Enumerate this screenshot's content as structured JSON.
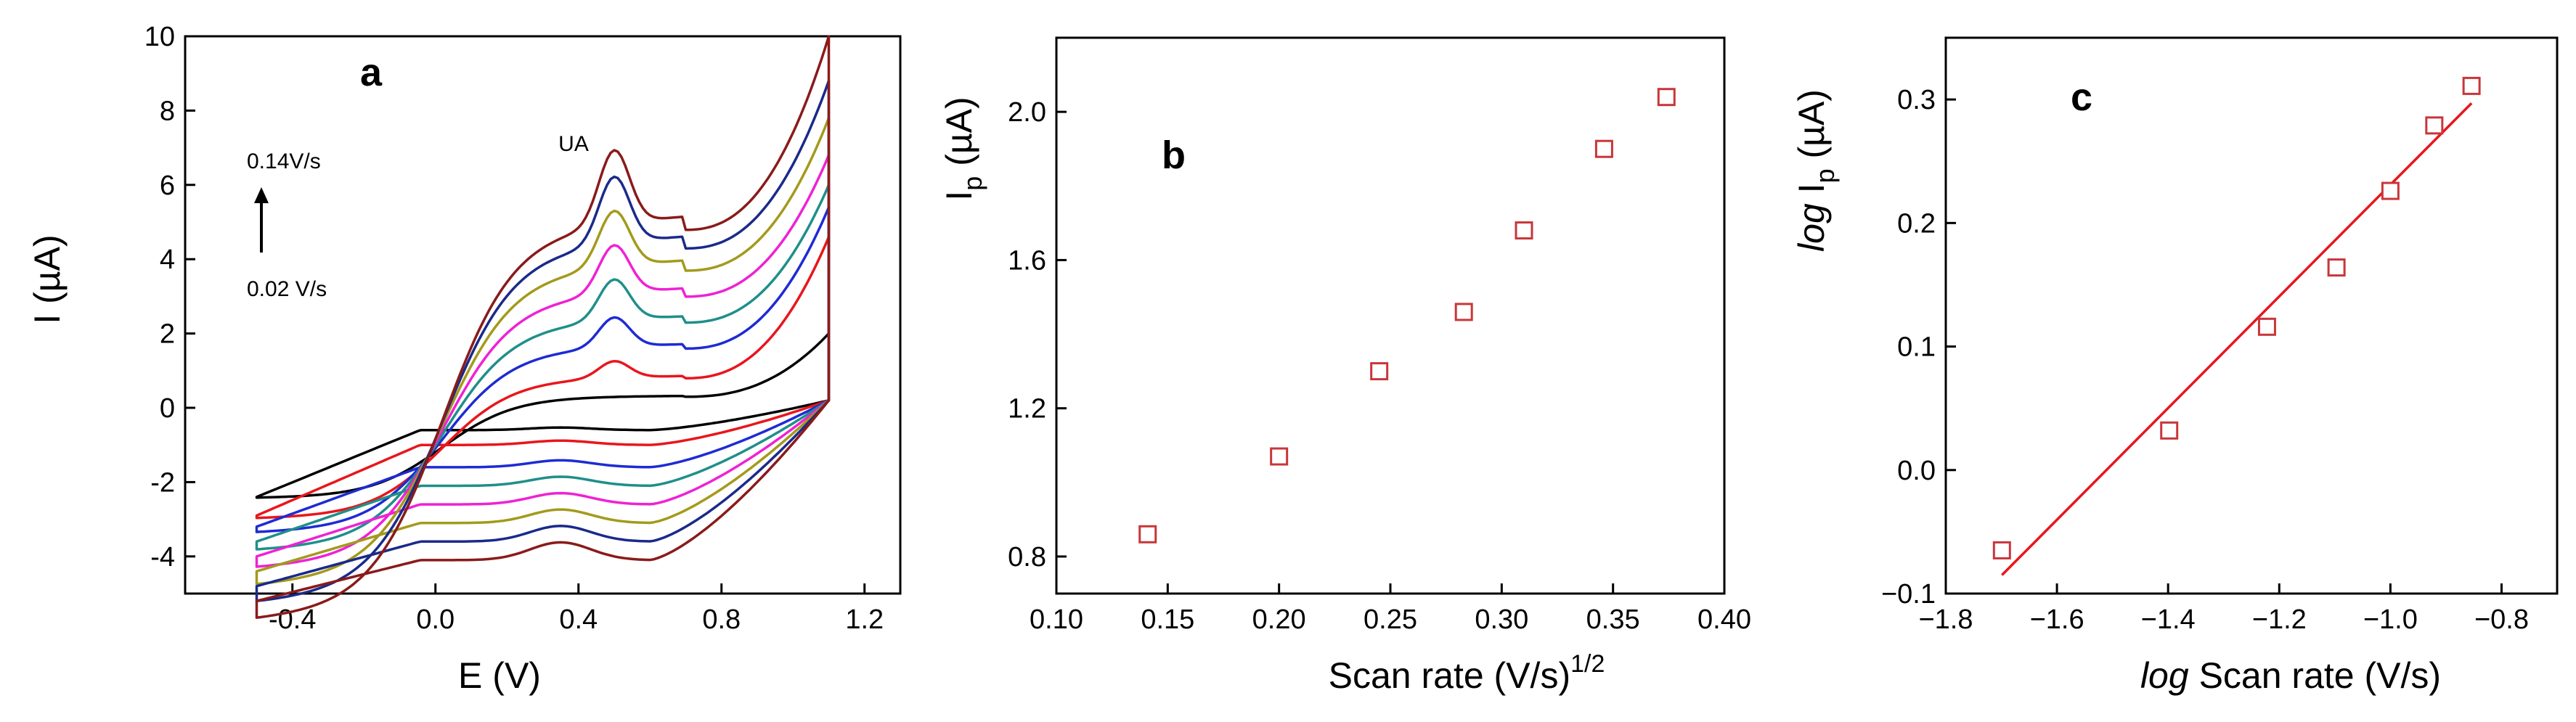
{
  "chart_data": [
    {
      "type": "line",
      "panel_label": "a",
      "xlabel": "E (V)",
      "ylabel": "I (µA)",
      "xlim": [
        -0.7,
        1.3
      ],
      "ylim": [
        -5,
        10
      ],
      "xticks": [
        "-0.4",
        "0.0",
        "0.4",
        "0.8",
        "1.2"
      ],
      "yticks": [
        "-4",
        "-2",
        "0",
        "2",
        "4",
        "6",
        "8",
        "10"
      ],
      "annotations": {
        "peak_label": "UA",
        "rate_high": "0.14V/s",
        "rate_low": "0.02 V/s"
      },
      "potential_range": [
        -0.5,
        1.1
      ],
      "series": [
        {
          "color": "#000000",
          "plateau": 0.3,
          "peak": 0.0,
          "cathodic": -0.6,
          "end_current": 2.0,
          "start_current": -2.4
        },
        {
          "color": "#e8161c",
          "plateau": 0.8,
          "peak": 0.45,
          "cathodic": -1.0,
          "end_current": 4.6,
          "start_current": -2.9
        },
        {
          "color": "#1e2bd4",
          "plateau": 1.6,
          "peak": 0.8,
          "cathodic": -1.6,
          "end_current": 5.4,
          "start_current": -3.2
        },
        {
          "color": "#1f8f8a",
          "plateau": 2.3,
          "peak": 1.1,
          "cathodic": -2.1,
          "end_current": 6.0,
          "start_current": -3.6
        },
        {
          "color": "#ee22d4",
          "plateau": 3.0,
          "peak": 1.3,
          "cathodic": -2.6,
          "end_current": 6.8,
          "start_current": -4.0
        },
        {
          "color": "#a39a1c",
          "plateau": 3.7,
          "peak": 1.5,
          "cathodic": -3.1,
          "end_current": 7.8,
          "start_current": -4.4
        },
        {
          "color": "#1a2a8a",
          "plateau": 4.3,
          "peak": 1.8,
          "cathodic": -3.6,
          "end_current": 8.8,
          "start_current": -4.8
        },
        {
          "color": "#8a1a1a",
          "plateau": 4.8,
          "peak": 2.0,
          "cathodic": -4.1,
          "end_current": 10.0,
          "start_current": -5.2
        }
      ]
    },
    {
      "type": "scatter",
      "panel_label": "b",
      "xlabel": "Scan rate (V/s)",
      "xlabel_sup": "1/2",
      "ylabel": "I",
      "ylabel_sub": "p",
      "ylabel_unit": " (µA)",
      "xlim": [
        0.1,
        0.4
      ],
      "ylim": [
        0.7,
        2.2
      ],
      "xticks": [
        "0.10",
        "0.15",
        "0.20",
        "0.25",
        "0.30",
        "0.35",
        "0.40"
      ],
      "yticks": [
        "0.8",
        "1.2",
        "1.6",
        "2.0"
      ],
      "marker_color": "#c8363a",
      "x": [
        0.141,
        0.2,
        0.245,
        0.283,
        0.31,
        0.346,
        0.374
      ],
      "y": [
        0.86,
        1.07,
        1.3,
        1.46,
        1.68,
        1.9,
        2.04
      ]
    },
    {
      "type": "scatter",
      "panel_label": "c",
      "xlabel_prefix": "log",
      "xlabel": " Scan rate (V/s)",
      "ylabel_prefix": "log",
      "ylabel": " I",
      "ylabel_sub": "p",
      "ylabel_unit": " (µA)",
      "xlim": [
        -1.8,
        -0.7
      ],
      "ylim": [
        -0.1,
        0.35
      ],
      "xticks": [
        "−1.8",
        "−1.6",
        "−1.4",
        "−1.2",
        "−1.0",
        "−0.8"
      ],
      "yticks": [
        "−0.1",
        "0.0",
        "0.1",
        "0.2",
        "0.3"
      ],
      "marker_color": "#c8363a",
      "line_color": "#e8161c",
      "x": [
        -1.699,
        -1.398,
        -1.222,
        -1.097,
        -1.0,
        -0.921,
        -0.854
      ],
      "y": [
        -0.065,
        0.032,
        0.116,
        0.164,
        0.226,
        0.279,
        0.311
      ],
      "fit": {
        "x": [
          -1.699,
          -0.854
        ],
        "y": [
          -0.085,
          0.297
        ]
      }
    }
  ]
}
